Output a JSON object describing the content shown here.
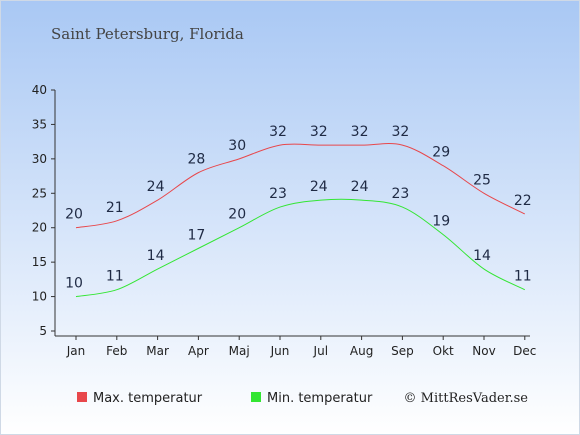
{
  "chart_data": {
    "type": "line",
    "title": "Saint Petersburg, Florida",
    "categories": [
      "Jan",
      "Feb",
      "Mar",
      "Apr",
      "Maj",
      "Jun",
      "Jul",
      "Aug",
      "Sep",
      "Okt",
      "Nov",
      "Dec"
    ],
    "series": [
      {
        "name": "Max. temperatur",
        "color": "#e8474b",
        "values": [
          20,
          21,
          24,
          28,
          30,
          32,
          32,
          32,
          32,
          29,
          25,
          22
        ]
      },
      {
        "name": "Min. temperatur",
        "color": "#33e633",
        "values": [
          10,
          11,
          14,
          17,
          20,
          23,
          24,
          24,
          23,
          19,
          14,
          11
        ]
      }
    ],
    "ylim": [
      5,
      40
    ],
    "yticks": [
      5,
      10,
      15,
      20,
      25,
      30,
      35,
      40
    ],
    "legend": "bottom",
    "background_gradient": [
      "#a9c8f4",
      "#ffffff"
    ]
  },
  "credit": "© MittResVader.se"
}
